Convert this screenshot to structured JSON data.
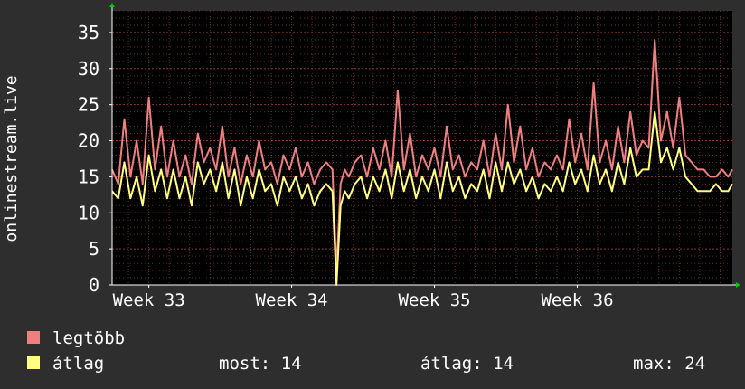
{
  "chart_data": {
    "type": "line",
    "ylabel": "onlinestream.live",
    "ylim": [
      0,
      38
    ],
    "yticks": [
      "0",
      "5",
      "10",
      "15",
      "20",
      "25",
      "30",
      "35"
    ],
    "ytick_values": [
      0,
      5,
      10,
      15,
      20,
      25,
      30,
      35
    ],
    "xticks": [
      {
        "label": "Week 33",
        "x": 9.0
      },
      {
        "label": "Week 34",
        "x": 16.0
      },
      {
        "label": "Week 35",
        "x": 23.0
      },
      {
        "label": "Week 36",
        "x": 30.0
      }
    ],
    "xlim": [
      7.2,
      37.6
    ],
    "grid": true,
    "colors": {
      "background": "#2e2e2e",
      "plot": "#000000",
      "grid": "#6a2a2a",
      "axis": "#ffffff",
      "arrow": "#00cc00"
    },
    "series": [
      {
        "name": "legtöbb",
        "color": "#f08080",
        "x": [
          7.2,
          7.5,
          7.8,
          8.1,
          8.4,
          8.7,
          9.0,
          9.3,
          9.6,
          9.9,
          10.2,
          10.5,
          10.8,
          11.1,
          11.4,
          11.7,
          12.0,
          12.3,
          12.6,
          12.9,
          13.2,
          13.5,
          13.8,
          14.1,
          14.4,
          14.7,
          15.0,
          15.3,
          15.6,
          15.9,
          16.2,
          16.5,
          16.8,
          17.1,
          17.4,
          17.7,
          18.0,
          18.2,
          18.4,
          18.6,
          18.8,
          19.1,
          19.4,
          19.7,
          20.0,
          20.3,
          20.6,
          20.9,
          21.2,
          21.5,
          21.8,
          22.1,
          22.4,
          22.7,
          23.0,
          23.3,
          23.6,
          23.9,
          24.2,
          24.5,
          24.8,
          25.1,
          25.4,
          25.7,
          26.0,
          26.3,
          26.6,
          26.9,
          27.2,
          27.5,
          27.8,
          28.1,
          28.4,
          28.7,
          29.0,
          29.3,
          29.6,
          29.9,
          30.2,
          30.5,
          30.8,
          31.1,
          31.4,
          31.7,
          32.0,
          32.3,
          32.6,
          32.9,
          33.2,
          33.5,
          33.8,
          34.1,
          34.4,
          34.7,
          35.0,
          35.3,
          35.6,
          35.9,
          36.2,
          36.5,
          36.8,
          37.1,
          37.4,
          37.6
        ],
        "values": [
          16,
          14,
          23,
          15,
          20,
          14,
          26,
          16,
          22,
          15,
          20,
          15,
          18,
          14,
          21,
          17,
          19,
          16,
          22,
          15,
          19,
          14,
          18,
          15,
          20,
          16,
          17,
          14,
          18,
          16,
          19,
          15,
          17,
          14,
          16,
          17,
          16,
          2,
          14,
          16,
          15,
          17,
          18,
          15,
          19,
          16,
          20,
          15,
          27,
          16,
          21,
          15,
          18,
          16,
          19,
          15,
          22,
          16,
          18,
          15,
          17,
          16,
          20,
          15,
          21,
          16,
          25,
          17,
          22,
          16,
          19,
          15,
          17,
          16,
          18,
          16,
          23,
          17,
          21,
          16,
          28,
          17,
          20,
          16,
          22,
          17,
          24,
          18,
          20,
          19,
          34,
          20,
          24,
          19,
          26,
          18,
          17,
          16,
          16,
          15,
          15,
          16,
          15,
          16
        ]
      },
      {
        "name": "átlag",
        "color": "#ffff80",
        "x": [
          7.2,
          7.5,
          7.8,
          8.1,
          8.4,
          8.7,
          9.0,
          9.3,
          9.6,
          9.9,
          10.2,
          10.5,
          10.8,
          11.1,
          11.4,
          11.7,
          12.0,
          12.3,
          12.6,
          12.9,
          13.2,
          13.5,
          13.8,
          14.1,
          14.4,
          14.7,
          15.0,
          15.3,
          15.6,
          15.9,
          16.2,
          16.5,
          16.8,
          17.1,
          17.4,
          17.7,
          18.0,
          18.2,
          18.4,
          18.6,
          18.8,
          19.1,
          19.4,
          19.7,
          20.0,
          20.3,
          20.6,
          20.9,
          21.2,
          21.5,
          21.8,
          22.1,
          22.4,
          22.7,
          23.0,
          23.3,
          23.6,
          23.9,
          24.2,
          24.5,
          24.8,
          25.1,
          25.4,
          25.7,
          26.0,
          26.3,
          26.6,
          26.9,
          27.2,
          27.5,
          27.8,
          28.1,
          28.4,
          28.7,
          29.0,
          29.3,
          29.6,
          29.9,
          30.2,
          30.5,
          30.8,
          31.1,
          31.4,
          31.7,
          32.0,
          32.3,
          32.6,
          32.9,
          33.2,
          33.5,
          33.8,
          34.1,
          34.4,
          34.7,
          35.0,
          35.3,
          35.6,
          35.9,
          36.2,
          36.5,
          36.8,
          37.1,
          37.4,
          37.6
        ],
        "values": [
          13,
          12,
          17,
          12,
          15,
          11,
          18,
          13,
          16,
          12,
          16,
          12,
          15,
          11,
          17,
          14,
          16,
          13,
          17,
          12,
          16,
          11,
          15,
          12,
          16,
          13,
          14,
          11,
          15,
          13,
          15,
          12,
          14,
          11,
          13,
          14,
          13,
          0,
          11,
          13,
          12,
          14,
          15,
          12,
          15,
          13,
          16,
          12,
          17,
          13,
          16,
          12,
          15,
          13,
          16,
          12,
          17,
          13,
          15,
          12,
          14,
          13,
          16,
          12,
          17,
          13,
          17,
          14,
          16,
          13,
          15,
          12,
          14,
          13,
          15,
          13,
          17,
          14,
          16,
          13,
          18,
          14,
          16,
          13,
          17,
          14,
          19,
          15,
          16,
          16,
          24,
          17,
          19,
          16,
          19,
          15,
          14,
          13,
          13,
          13,
          14,
          13,
          13,
          14
        ]
      }
    ]
  },
  "legend": {
    "items": [
      {
        "label": "legtöbb",
        "color": "#f08080"
      },
      {
        "label": "átlag",
        "color": "#ffff80"
      }
    ],
    "stats": {
      "now": "most: 14",
      "avg": "átlag: 14",
      "max": "max: 24"
    }
  }
}
